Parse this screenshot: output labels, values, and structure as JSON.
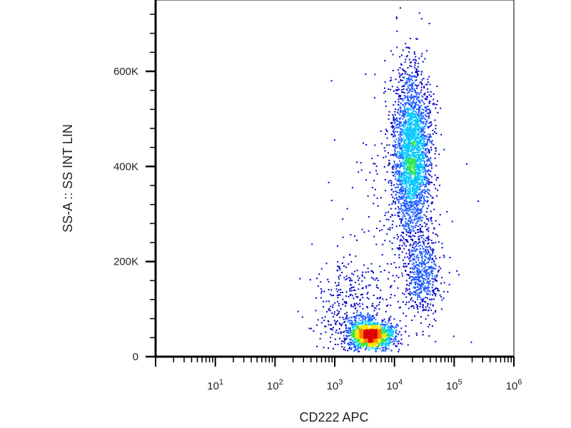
{
  "chart_data": {
    "type": "scatter",
    "subtype": "flow-cytometry-density-dot-plot",
    "xlabel": "CD222 APC",
    "ylabel": "SS-A :: SS INT LIN",
    "x_scale": "log",
    "xlim": [
      1,
      1000000
    ],
    "y_scale": "linear",
    "ylim": [
      0,
      750000
    ],
    "x_ticks": [
      {
        "value": 10,
        "base": "10",
        "exp": "1"
      },
      {
        "value": 100,
        "base": "10",
        "exp": "2"
      },
      {
        "value": 1000,
        "base": "10",
        "exp": "3"
      },
      {
        "value": 10000,
        "base": "10",
        "exp": "4"
      },
      {
        "value": 100000,
        "base": "10",
        "exp": "5"
      },
      {
        "value": 1000000,
        "base": "10",
        "exp": "6"
      }
    ],
    "y_ticks": [
      {
        "value": 0,
        "label": "0"
      },
      {
        "value": 200000,
        "label": "200K"
      },
      {
        "value": 400000,
        "label": "400K"
      },
      {
        "value": 600000,
        "label": "600K"
      }
    ],
    "grid": false,
    "legend": "none",
    "density_colors": [
      "#0000c8",
      "#1e5cff",
      "#00c8ff",
      "#2ee84a",
      "#ffe600",
      "#ff7a00",
      "#e00000"
    ],
    "populations": [
      {
        "x_center": 4000,
        "y_center": 45000,
        "x_log_spread": 0.2,
        "y_spread": 15000,
        "weight": 0.28
      },
      {
        "x_center": 20000,
        "y_center": 420000,
        "x_log_spread": 0.17,
        "y_spread": 90000,
        "weight": 0.5
      },
      {
        "x_center": 30000,
        "y_center": 170000,
        "x_log_spread": 0.15,
        "y_spread": 40000,
        "weight": 0.1
      },
      {
        "x_center": 2000,
        "y_center": 100000,
        "x_log_spread": 0.3,
        "y_spread": 50000,
        "weight": 0.07
      },
      {
        "x_center": 10000,
        "y_center": 250000,
        "x_log_spread": 0.45,
        "y_spread": 180000,
        "weight": 0.05
      }
    ]
  }
}
